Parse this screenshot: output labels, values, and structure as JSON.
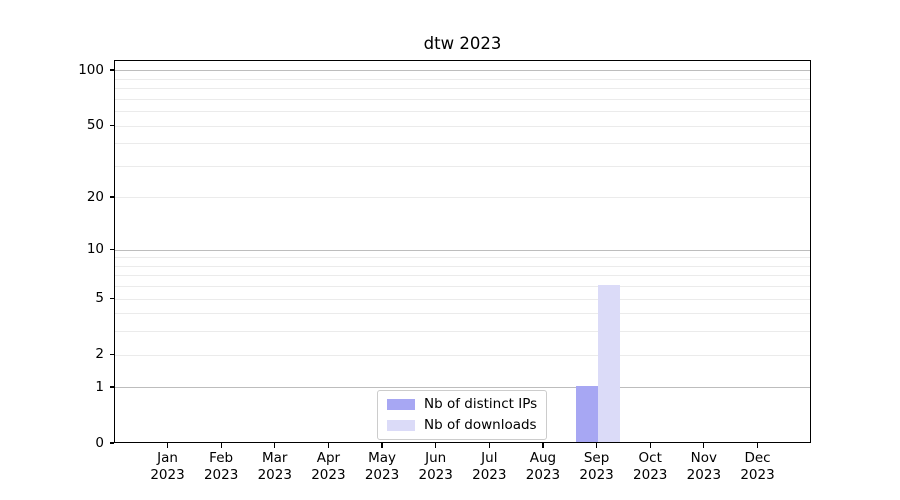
{
  "chart_data": {
    "type": "bar",
    "title": "dtw 2023",
    "categories": [
      "Jan\n2023",
      "Feb\n2023",
      "Mar\n2023",
      "Apr\n2023",
      "May\n2023",
      "Jun\n2023",
      "Jul\n2023",
      "Aug\n2023",
      "Sep\n2023",
      "Oct\n2023",
      "Nov\n2023",
      "Dec\n2023"
    ],
    "series": [
      {
        "name": "Nb of distinct IPs",
        "color": "#a7a7f3",
        "values": [
          0,
          0,
          0,
          0,
          0,
          0,
          0,
          0,
          1,
          0,
          0,
          0
        ]
      },
      {
        "name": "Nb of downloads",
        "color": "#dbdbf8",
        "values": [
          0,
          0,
          0,
          0,
          0,
          0,
          0,
          0,
          6,
          0,
          0,
          0
        ]
      }
    ],
    "xlabel": "",
    "ylabel": "",
    "yscale": "log1p",
    "yticks": [
      0,
      1,
      2,
      5,
      10,
      20,
      50,
      100
    ],
    "ylim": [
      0,
      113
    ],
    "grid": {
      "major": [
        1,
        10,
        100
      ],
      "minor": [
        2,
        3,
        4,
        5,
        6,
        7,
        8,
        9,
        20,
        30,
        40,
        50,
        60,
        70,
        80,
        90
      ]
    },
    "colors": {
      "axis": "#000000",
      "grid_major": "#bdbdbd",
      "grid_minor": "#ebebeb",
      "legend_border": "#cccccc",
      "background": "#ffffff"
    },
    "legend_position": "lower-center-inside"
  }
}
